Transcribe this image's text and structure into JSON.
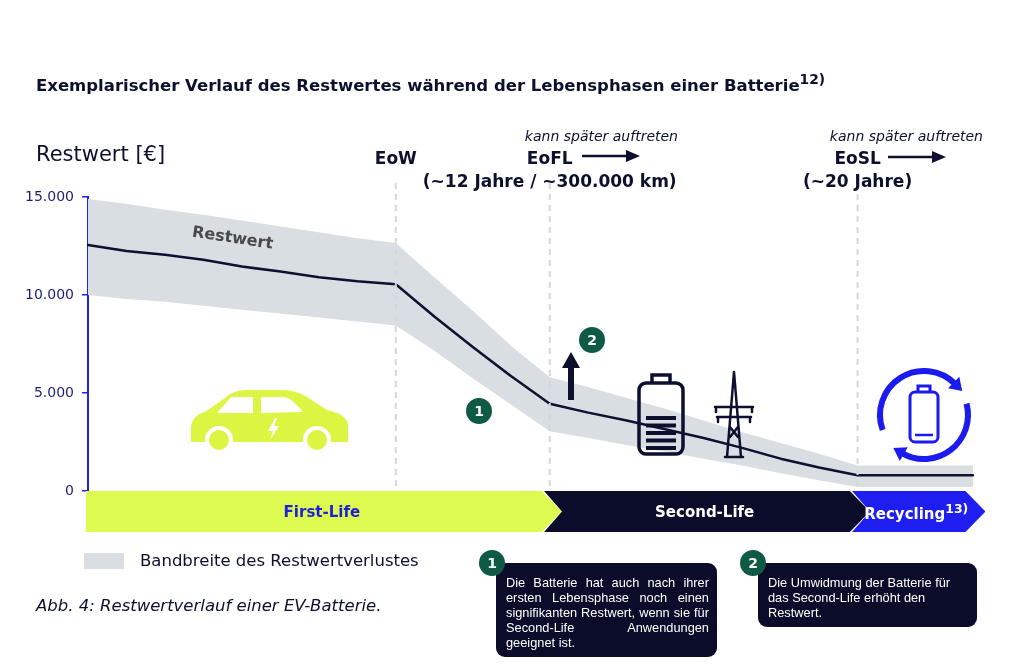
{
  "chart_data": {
    "type": "line",
    "title": "Exemplarischer Verlauf des Restwertes während der Lebensphasen einer Batterie$^{12)}$",
    "ylabel": "Restwert [€]",
    "categories": [
      null,
      null,
      null,
      null,
      null,
      null,
      null,
      null,
      null,
      null,
      null,
      null,
      null,
      null,
      null,
      null,
      null,
      null,
      null,
      null,
      null,
      null,
      null,
      null
    ],
    "series": [
      {
        "name": "Restwert",
        "color": "#0e1030",
        "values": [
          12550,
          12250,
          12050,
          11800,
          11450,
          11200,
          10900,
          10700,
          10550,
          8900,
          7350,
          5850,
          4450,
          4000,
          3600,
          3150,
          2700,
          2200,
          1650,
          1200,
          800,
          800,
          800,
          800
        ]
      },
      {
        "name": "Bandbreite des Restwertverlustes",
        "color": "#d9dee2",
        "values": [
          null,
          null,
          null,
          null,
          null,
          null,
          null,
          null,
          null,
          null,
          null,
          null,
          null,
          null,
          null,
          null,
          null,
          null,
          null,
          null,
          null,
          null,
          null,
          null
        ],
        "upper": [
          14900,
          14650,
          14350,
          14100,
          13800,
          13500,
          13200,
          12900,
          12650,
          10900,
          9200,
          7400,
          5800,
          5300,
          4750,
          4200,
          3600,
          3000,
          2450,
          1900,
          1300,
          1300,
          1300,
          1300
        ],
        "lower": [
          10000,
          9800,
          9650,
          9450,
          9250,
          9050,
          8850,
          8650,
          8450,
          7150,
          5750,
          4400,
          3050,
          2700,
          2350,
          2000,
          1650,
          1300,
          900,
          550,
          200,
          200,
          200,
          200
        ]
      }
    ],
    "ylim": [
      0,
      15000
    ],
    "yticks": [
      0,
      {
        "value": 5000,
        "label": "5.000"
      },
      {
        "value": 10000,
        "label": "10.000"
      },
      {
        "value": 15000,
        "label": "15.000"
      }
    ],
    "tick_labels": "y",
    "grid": "x",
    "legend": "bottom left",
    "marker": "none",
    "annotations": [
      "EoW",
      "EoFL",
      "(~12 Jahre / ~300.000 km)",
      "EoSL",
      "(~20 Jahre)",
      "kann später auftreten",
      "kann später auftreten",
      "First-Life",
      "Second-Life",
      "Recycling$^{13)}$",
      "1",
      "2",
      "1",
      "Die Batterie hat auch nach ihrer ersten Lebensphase noch einen signifikanten Restwert, wenn sie für Second-Life Anwendungen geeignet ist.",
      "2",
      "Die Umwidmung der Batterie für das Second-Life erhöht den Restwert.",
      "Abb. 4: Restwertverlauf einer EV-Batterie."
    ]
  }
}
